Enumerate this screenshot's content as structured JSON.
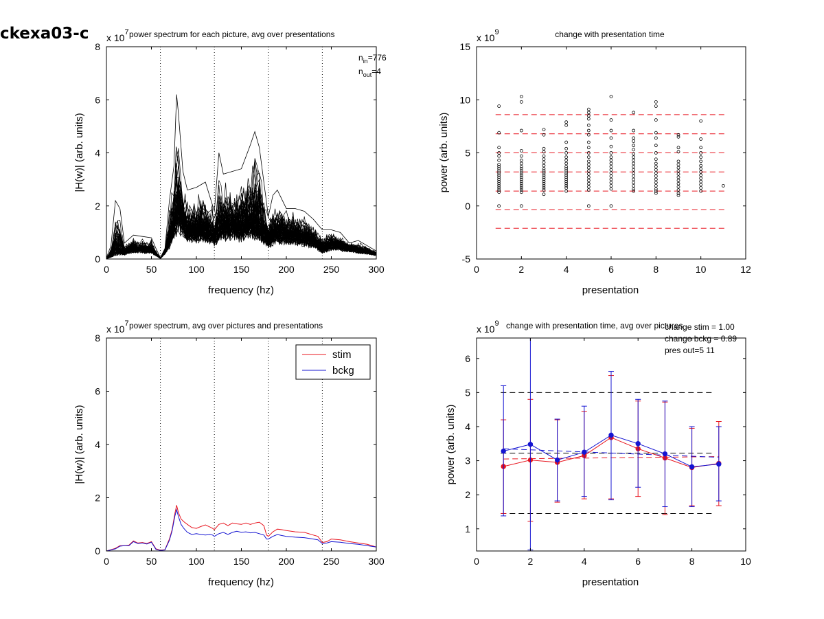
{
  "figure_label": "ckexa03-c",
  "panels": {
    "tl": {
      "title": "power spectrum for each picture, avg over presentations",
      "exponent": "x 10",
      "exponent_power": "7",
      "xlabel": "frequency (hz)",
      "ylabel": "|H(w)| (arb. units)",
      "xticks": [
        "0",
        "50",
        "100",
        "150",
        "200",
        "250",
        "300"
      ],
      "yticks": [
        "0",
        "2",
        "4",
        "6",
        "8"
      ],
      "n_in_label": "n",
      "n_in_sub": "in",
      "n_in_value": "=776",
      "n_out_label": "n",
      "n_out_sub": "out",
      "n_out_value": "=4"
    },
    "tr": {
      "title": "change with presentation time",
      "exponent": "x 10",
      "exponent_power": "9",
      "xlabel": "presentation",
      "ylabel": "power (arb. units)",
      "xticks": [
        "0",
        "2",
        "4",
        "6",
        "8",
        "10",
        "12"
      ],
      "yticks": [
        "-5",
        "0",
        "5",
        "10",
        "15"
      ]
    },
    "bl": {
      "title": "power spectrum, avg over pictures and presentations",
      "exponent": "x 10",
      "exponent_power": "7",
      "xlabel": "frequency (hz)",
      "ylabel": "|H(w)| (arb. units)",
      "xticks": [
        "0",
        "50",
        "100",
        "150",
        "200",
        "250",
        "300"
      ],
      "yticks": [
        "0",
        "2",
        "4",
        "6",
        "8"
      ],
      "legend": [
        "stim",
        "bckg"
      ]
    },
    "br": {
      "title": "change with presentation time, avg over pictures",
      "exponent": "x 10",
      "exponent_power": "9",
      "xlabel": "presentation",
      "ylabel": "power (arb. units)",
      "xticks": [
        "0",
        "2",
        "4",
        "6",
        "8",
        "10"
      ],
      "yticks": [
        "1",
        "2",
        "3",
        "4",
        "5",
        "6"
      ],
      "annotations": [
        "change stim = 1.00",
        "change bckg = 0.89",
        "pres out=5 11"
      ]
    }
  },
  "colors": {
    "stim": "#e8141e",
    "bckg": "#1414d2",
    "dashed_red": "#e8141e",
    "dashed_black": "#000000"
  },
  "chart_data": [
    {
      "type": "line",
      "title": "power spectrum for each picture, avg over presentations",
      "xlabel": "frequency (hz)",
      "ylabel": "|H(w)| (arb. units)",
      "y_scale_factor": 10000000.0,
      "xlim": [
        0,
        300
      ],
      "ylim": [
        0,
        8
      ],
      "vertical_dotted_lines_x": [
        60,
        120,
        180,
        240,
        300
      ],
      "n_curves": 776,
      "envelope": {
        "x": [
          0,
          5,
          10,
          15,
          20,
          30,
          40,
          50,
          55,
          60,
          65,
          70,
          75,
          78,
          80,
          85,
          90,
          100,
          110,
          120,
          125,
          130,
          140,
          150,
          160,
          165,
          170,
          180,
          185,
          190,
          200,
          210,
          220,
          230,
          240,
          250,
          260,
          270,
          280,
          290,
          300
        ],
        "max": [
          0.05,
          0.5,
          2.2,
          1.9,
          0.6,
          0.9,
          0.85,
          0.8,
          0.4,
          0.05,
          0.4,
          2.2,
          3.5,
          6.2,
          5.5,
          3.3,
          2.6,
          2.7,
          2.9,
          1.8,
          4.0,
          3.2,
          3.3,
          3.4,
          4.3,
          4.8,
          4.2,
          1.6,
          2.4,
          2.6,
          1.9,
          1.9,
          1.8,
          1.5,
          1.1,
          1.1,
          1.0,
          0.6,
          0.7,
          0.5,
          0.3
        ]
      },
      "representative_curve": {
        "x": [
          0,
          10,
          20,
          30,
          40,
          50,
          60,
          70,
          75,
          80,
          90,
          100,
          110,
          120,
          130,
          140,
          150,
          160,
          170,
          180,
          190,
          200,
          210,
          220,
          230,
          240,
          250,
          260,
          270,
          280,
          290,
          300
        ],
        "y": [
          0,
          0.2,
          0.25,
          0.4,
          0.35,
          0.35,
          0.02,
          0.6,
          1.2,
          1.6,
          1.1,
          1.0,
          1.05,
          0.8,
          1.2,
          1.15,
          1.1,
          1.2,
          1.05,
          0.7,
          0.95,
          0.9,
          0.85,
          0.8,
          0.7,
          0.35,
          0.55,
          0.5,
          0.45,
          0.35,
          0.3,
          0.2
        ]
      }
    },
    {
      "type": "scatter",
      "title": "change with presentation time",
      "xlabel": "presentation",
      "ylabel": "power (arb. units)",
      "y_scale_factor": 1000000000.0,
      "xlim": [
        0,
        12
      ],
      "ylim": [
        -5,
        15
      ],
      "horizontal_dashed_lines_y": [
        8.6,
        6.8,
        5.0,
        3.2,
        1.4,
        -0.35,
        -2.1
      ],
      "points_by_presentation": [
        {
          "x": 1,
          "y": [
            9.4,
            6.9,
            5.5,
            5.0,
            4.7,
            4.3,
            3.9,
            3.7,
            3.5,
            3.3,
            3.1,
            2.9,
            2.7,
            2.5,
            2.3,
            2.1,
            1.9,
            1.7,
            1.5,
            1.3,
            0.0
          ]
        },
        {
          "x": 2,
          "y": [
            10.3,
            9.8,
            7.1,
            5.2,
            4.7,
            4.3,
            4.0,
            3.7,
            3.5,
            3.3,
            3.1,
            2.9,
            2.7,
            2.5,
            2.3,
            2.1,
            1.9,
            1.7,
            1.5,
            1.3,
            0.0
          ]
        },
        {
          "x": 3,
          "y": [
            7.2,
            6.7,
            5.4,
            5.1,
            4.7,
            4.4,
            4.1,
            3.8,
            3.5,
            3.3,
            3.1,
            2.9,
            2.7,
            2.5,
            2.3,
            2.1,
            1.9,
            1.7,
            1.5,
            1.1
          ]
        },
        {
          "x": 4,
          "y": [
            7.9,
            7.6,
            6.0,
            5.4,
            5.0,
            4.6,
            4.3,
            4.0,
            3.7,
            3.5,
            3.3,
            3.1,
            2.9,
            2.7,
            2.5,
            2.3,
            2.1,
            1.9,
            1.7,
            1.4
          ]
        },
        {
          "x": 5,
          "y": [
            9.1,
            8.8,
            8.5,
            8.2,
            7.6,
            7.1,
            6.7,
            6.0,
            5.5,
            5.0,
            4.6,
            4.2,
            3.9,
            3.6,
            3.3,
            3.0,
            2.7,
            2.4,
            2.1,
            1.8,
            1.5,
            0.0
          ]
        },
        {
          "x": 6,
          "y": [
            10.3,
            8.1,
            7.1,
            6.4,
            5.6,
            5.0,
            4.6,
            4.3,
            4.0,
            3.7,
            3.4,
            3.1,
            2.8,
            2.5,
            2.2,
            1.9,
            1.6,
            0.0
          ]
        },
        {
          "x": 7,
          "y": [
            8.8,
            7.1,
            6.4,
            6.1,
            5.7,
            5.3,
            4.9,
            4.6,
            4.3,
            4.0,
            3.7,
            3.4,
            3.1,
            2.8,
            2.5,
            2.2,
            1.9,
            1.6,
            1.4
          ]
        },
        {
          "x": 8,
          "y": [
            9.8,
            9.4,
            8.1,
            6.9,
            6.4,
            5.7,
            5.0,
            4.4,
            4.0,
            3.7,
            3.4,
            3.1,
            2.8,
            2.5,
            2.2,
            1.9,
            1.6,
            1.4,
            1.2
          ]
        },
        {
          "x": 9,
          "y": [
            6.7,
            6.5,
            5.5,
            5.1,
            4.2,
            3.9,
            3.6,
            3.3,
            3.0,
            2.7,
            2.4,
            2.1,
            1.8,
            1.5,
            1.2,
            1.0
          ]
        },
        {
          "x": 10,
          "y": [
            8.0,
            6.3,
            5.5,
            5.0,
            4.6,
            4.2,
            3.8,
            3.5,
            3.2,
            2.9,
            2.6,
            2.3,
            2.0,
            1.7,
            1.4
          ]
        },
        {
          "x": 11,
          "y": [
            1.9
          ]
        }
      ]
    },
    {
      "type": "line",
      "title": "power spectrum, avg over pictures and presentations",
      "xlabel": "frequency (hz)",
      "ylabel": "|H(w)| (arb. units)",
      "y_scale_factor": 10000000.0,
      "xlim": [
        0,
        300
      ],
      "ylim": [
        0,
        8
      ],
      "vertical_dotted_lines_x": [
        60,
        120,
        180,
        240,
        300
      ],
      "legend_position": "top-right",
      "x": [
        0,
        5,
        10,
        15,
        20,
        25,
        30,
        35,
        40,
        45,
        50,
        55,
        60,
        65,
        70,
        73,
        76,
        78,
        80,
        83,
        86,
        90,
        95,
        100,
        105,
        110,
        115,
        118,
        120,
        125,
        130,
        135,
        140,
        145,
        150,
        155,
        160,
        165,
        170,
        175,
        178,
        180,
        185,
        190,
        195,
        200,
        210,
        220,
        230,
        235,
        240,
        245,
        250,
        260,
        270,
        280,
        290,
        300
      ],
      "series": [
        {
          "name": "stim",
          "values": [
            0.0,
            0.05,
            0.1,
            0.2,
            0.2,
            0.22,
            0.38,
            0.3,
            0.32,
            0.28,
            0.35,
            0.08,
            0.03,
            0.05,
            0.45,
            0.8,
            1.4,
            1.72,
            1.45,
            1.2,
            1.1,
            1.0,
            0.88,
            0.85,
            0.92,
            0.98,
            0.9,
            0.85,
            0.8,
            1.0,
            1.05,
            0.95,
            1.05,
            1.02,
            1.0,
            1.05,
            1.0,
            1.05,
            1.08,
            0.95,
            0.6,
            0.55,
            0.72,
            0.82,
            0.8,
            0.77,
            0.72,
            0.7,
            0.6,
            0.55,
            0.32,
            0.35,
            0.45,
            0.42,
            0.35,
            0.3,
            0.25,
            0.15
          ]
        },
        {
          "name": "bckg",
          "values": [
            0.0,
            0.04,
            0.08,
            0.18,
            0.2,
            0.2,
            0.35,
            0.28,
            0.3,
            0.26,
            0.33,
            0.06,
            0.02,
            0.04,
            0.4,
            0.75,
            1.3,
            1.55,
            1.3,
            1.0,
            0.85,
            0.7,
            0.62,
            0.65,
            0.62,
            0.6,
            0.62,
            0.6,
            0.55,
            0.65,
            0.7,
            0.62,
            0.7,
            0.74,
            0.7,
            0.72,
            0.68,
            0.7,
            0.65,
            0.6,
            0.45,
            0.45,
            0.55,
            0.62,
            0.58,
            0.55,
            0.52,
            0.5,
            0.45,
            0.42,
            0.28,
            0.3,
            0.35,
            0.33,
            0.28,
            0.25,
            0.2,
            0.15
          ]
        }
      ]
    },
    {
      "type": "line",
      "title": "change with presentation time, avg over pictures",
      "xlabel": "presentation",
      "ylabel": "power (arb. units)",
      "y_scale_factor": 1000000000.0,
      "xlim": [
        0,
        10
      ],
      "ylim": [
        0.35,
        6.6
      ],
      "x": [
        1,
        2,
        3,
        4,
        5,
        6,
        7,
        8,
        9
      ],
      "series": [
        {
          "name": "stim",
          "values": [
            2.83,
            3.02,
            2.95,
            3.15,
            3.68,
            3.35,
            3.08,
            2.8,
            2.92
          ],
          "error_low": [
            1.45,
            1.22,
            1.78,
            1.88,
            1.88,
            1.95,
            1.42,
            1.68,
            1.68
          ],
          "error_high": [
            4.2,
            4.8,
            4.2,
            4.45,
            5.5,
            4.75,
            4.72,
            3.95,
            4.15
          ]
        },
        {
          "name": "bckg",
          "values": [
            3.28,
            3.48,
            3.02,
            3.25,
            3.75,
            3.5,
            3.2,
            2.82,
            2.9
          ],
          "error_low": [
            1.38,
            0.38,
            1.82,
            1.95,
            1.85,
            2.22,
            1.65,
            1.65,
            1.82
          ],
          "error_high": [
            5.2,
            6.6,
            4.22,
            4.6,
            5.62,
            4.8,
            4.75,
            4.0,
            4.0
          ]
        }
      ],
      "horizontal_dashed_lines_y": [
        5.0,
        3.22,
        1.45
      ],
      "trend_lines": [
        {
          "color": "stim",
          "x": [
            1,
            9
          ],
          "y": [
            3.05,
            3.12
          ]
        },
        {
          "color": "bckg",
          "x": [
            1,
            9
          ],
          "y": [
            3.35,
            3.1
          ]
        }
      ]
    }
  ]
}
